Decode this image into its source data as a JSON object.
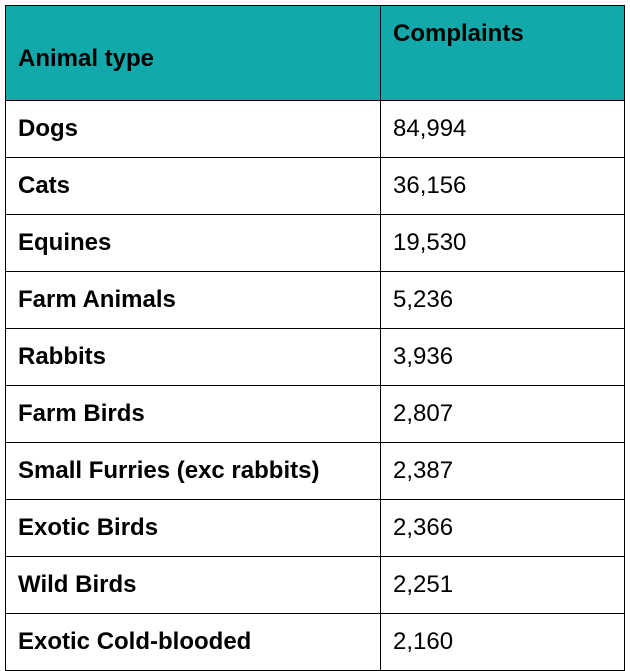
{
  "header": {
    "background": "#12A9AB",
    "columns": [
      "Animal type",
      "Complaints"
    ]
  },
  "rows": [
    {
      "animal": "Dogs",
      "complaints": "84,994"
    },
    {
      "animal": "Cats",
      "complaints": "36,156"
    },
    {
      "animal": "Equines",
      "complaints": "19,530"
    },
    {
      "animal": "Farm Animals",
      "complaints": "5,236"
    },
    {
      "animal": "Rabbits",
      "complaints": "3,936"
    },
    {
      "animal": "Farm Birds",
      "complaints": "2,807"
    },
    {
      "animal": "Small Furries (exc rabbits)",
      "complaints": "2,387"
    },
    {
      "animal": "Exotic Birds",
      "complaints": "2,366"
    },
    {
      "animal": "Wild Birds",
      "complaints": "2,251"
    },
    {
      "animal": "Exotic Cold-blooded",
      "complaints": "2,160"
    }
  ]
}
